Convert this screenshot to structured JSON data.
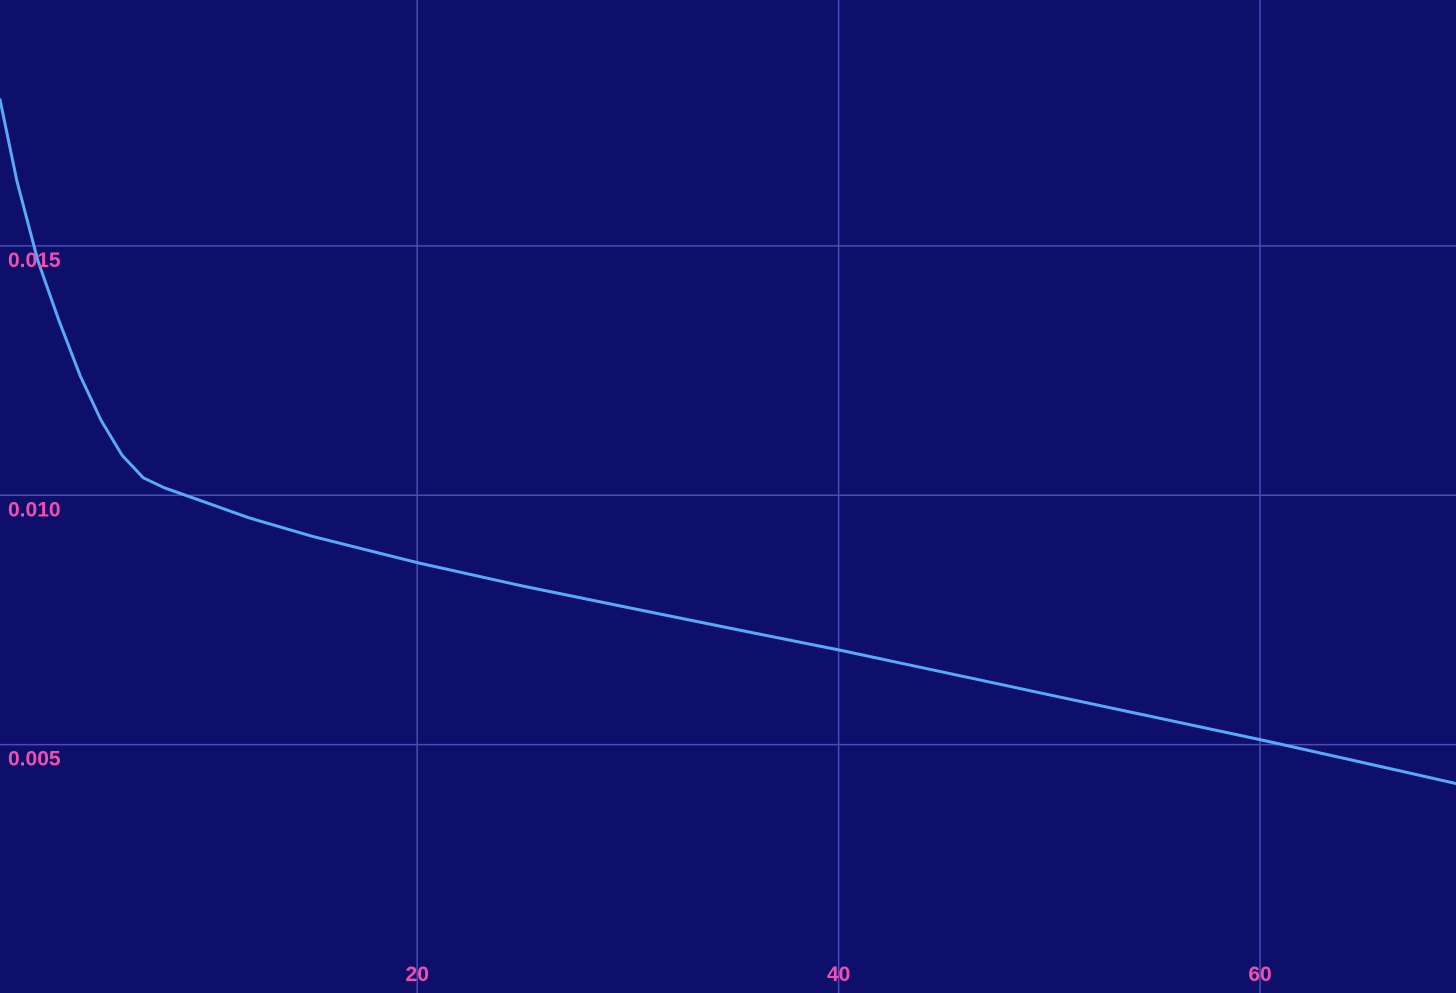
{
  "chart_data": {
    "type": "line",
    "title": "",
    "xlabel": "",
    "ylabel": "",
    "xlim": [
      0.2,
      69.3
    ],
    "ylim": [
      2e-05,
      0.01993
    ],
    "grid": true,
    "x_ticks": [
      20,
      40,
      60
    ],
    "x_tick_labels": [
      "20",
      "40",
      "60"
    ],
    "y_ticks": [
      0.005,
      0.01,
      0.015
    ],
    "y_tick_labels": [
      "0.005",
      "0.010",
      "0.015"
    ],
    "series": [
      {
        "name": "curve",
        "color": "#5aa9f8",
        "x": [
          0.2,
          1,
          2,
          3,
          4,
          5,
          6,
          7,
          8,
          10,
          12,
          15,
          20,
          25,
          30,
          35,
          40,
          45,
          50,
          55,
          60,
          65,
          69.3
        ],
        "y": [
          0.01793,
          0.0163,
          0.0147,
          0.0135,
          0.0124,
          0.0115,
          0.0108,
          0.01035,
          0.01015,
          0.00985,
          0.00955,
          0.00918,
          0.00865,
          0.00818,
          0.00775,
          0.00732,
          0.0069,
          0.00645,
          0.006,
          0.00555,
          0.0051,
          0.00463,
          0.00422
        ]
      }
    ]
  }
}
